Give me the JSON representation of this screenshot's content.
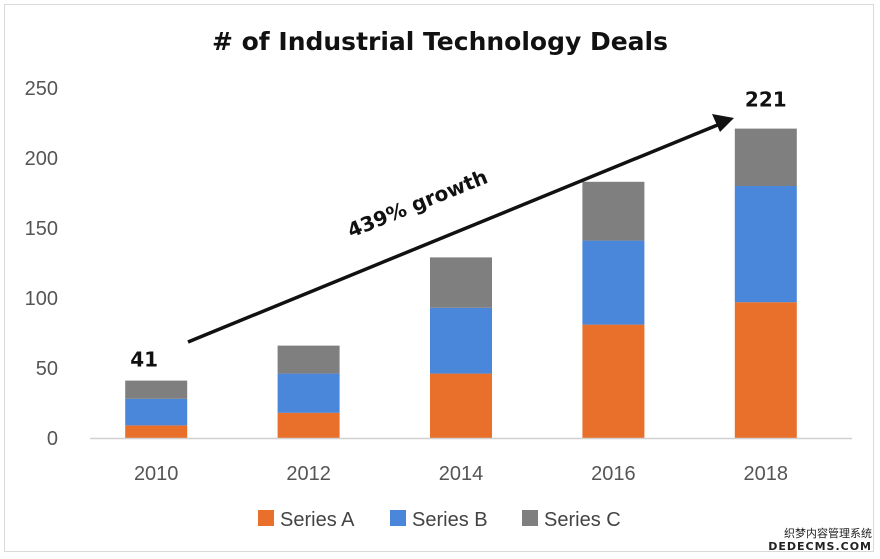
{
  "chart_data": {
    "type": "bar",
    "stacked": true,
    "title": "# of Industrial Technology Deals",
    "categories": [
      "2010",
      "2012",
      "2014",
      "2016",
      "2018"
    ],
    "series": [
      {
        "name": "Series A",
        "color": "#e8702a",
        "values": [
          9,
          18,
          46,
          81,
          97
        ]
      },
      {
        "name": "Series B",
        "color": "#4a86d9",
        "values": [
          19,
          28,
          47,
          60,
          83
        ]
      },
      {
        "name": "Series C",
        "color": "#7f7f7f",
        "values": [
          13,
          20,
          36,
          42,
          41
        ]
      }
    ],
    "totals_labels": {
      "first": "41",
      "last": "221"
    },
    "annotation": "439% growth",
    "ylim": [
      0,
      250
    ],
    "yticks": [
      0,
      50,
      100,
      150,
      200,
      250
    ],
    "xlabel": "",
    "ylabel": "",
    "legend": "bottom"
  },
  "watermark": {
    "line1": "织梦内容管理系统",
    "line2": "DEDECMS.COM"
  }
}
